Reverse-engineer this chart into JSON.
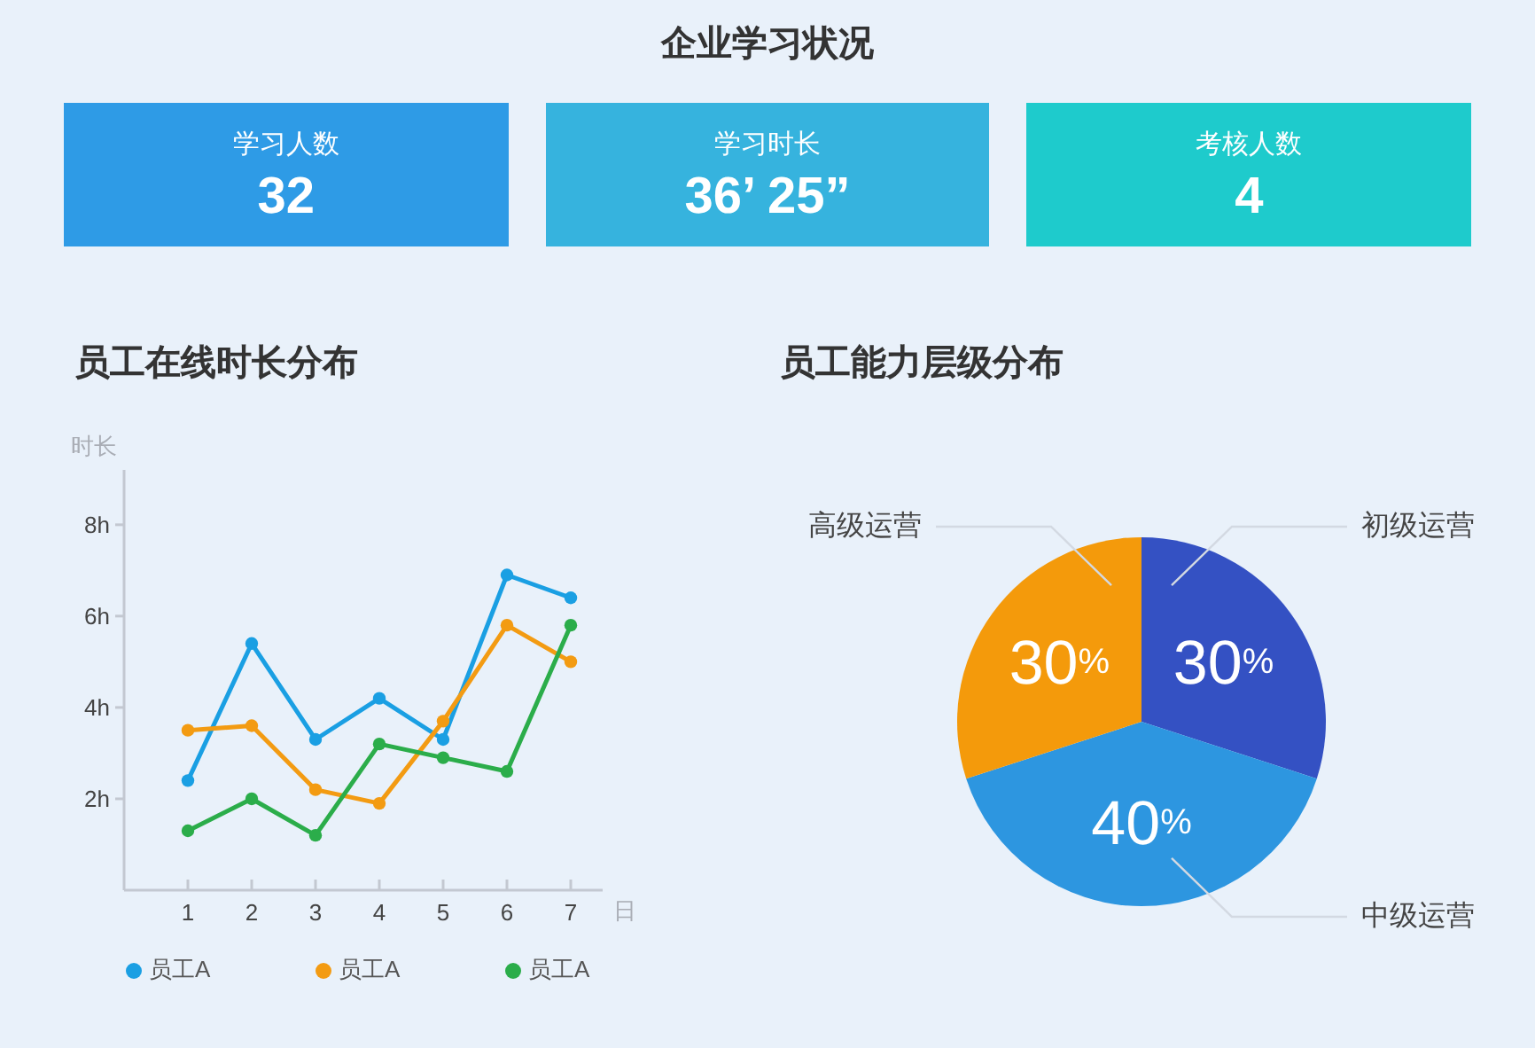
{
  "chart_data": [
    {
      "type": "other",
      "title": "企业学习状况",
      "categories": [
        "学习人数",
        "学习时长",
        "考核人数"
      ],
      "value_labels": [
        "32",
        "36’ 25”",
        "4"
      ],
      "colors": [
        "#2e9be6",
        "#36b3de",
        "#1ecbcc"
      ]
    },
    {
      "type": "line",
      "title": "员工在线时长分布",
      "xlabel": "日",
      "ylabel": "时长",
      "x": [
        1,
        2,
        3,
        4,
        5,
        6,
        7
      ],
      "xlim": [
        0,
        7.5
      ],
      "xticks": [
        1,
        2,
        3,
        4,
        5,
        6,
        7
      ],
      "ylim": [
        0,
        9.2
      ],
      "yticks": [
        {
          "value": 2,
          "label": "2h"
        },
        {
          "value": 4,
          "label": "4h"
        },
        {
          "value": 6,
          "label": "6h"
        },
        {
          "value": 8,
          "label": "8h"
        }
      ],
      "marker": "circle",
      "line_style": "solid",
      "legend": "bottom",
      "series": [
        {
          "name": "员工A",
          "color": "#1a9fe3",
          "values": [
            2.4,
            5.4,
            3.3,
            4.2,
            3.3,
            6.9,
            6.4
          ]
        },
        {
          "name": "员工A",
          "color": "#f39b12",
          "values": [
            3.5,
            3.6,
            2.2,
            1.9,
            3.7,
            5.8,
            5.0
          ]
        },
        {
          "name": "员工A",
          "color": "#2bad4a",
          "values": [
            1.3,
            2.0,
            1.2,
            3.2,
            2.9,
            2.6,
            5.8
          ]
        }
      ]
    },
    {
      "type": "pie",
      "title": "员工能力层级分布",
      "categories": [
        "初级运营",
        "中级运营",
        "高级运营"
      ],
      "values": [
        30,
        40,
        30
      ],
      "colors": [
        "#3451c3",
        "#2d96e0",
        "#f49a0b"
      ],
      "value_labels": [
        "30%",
        "40%",
        "30%"
      ]
    }
  ]
}
